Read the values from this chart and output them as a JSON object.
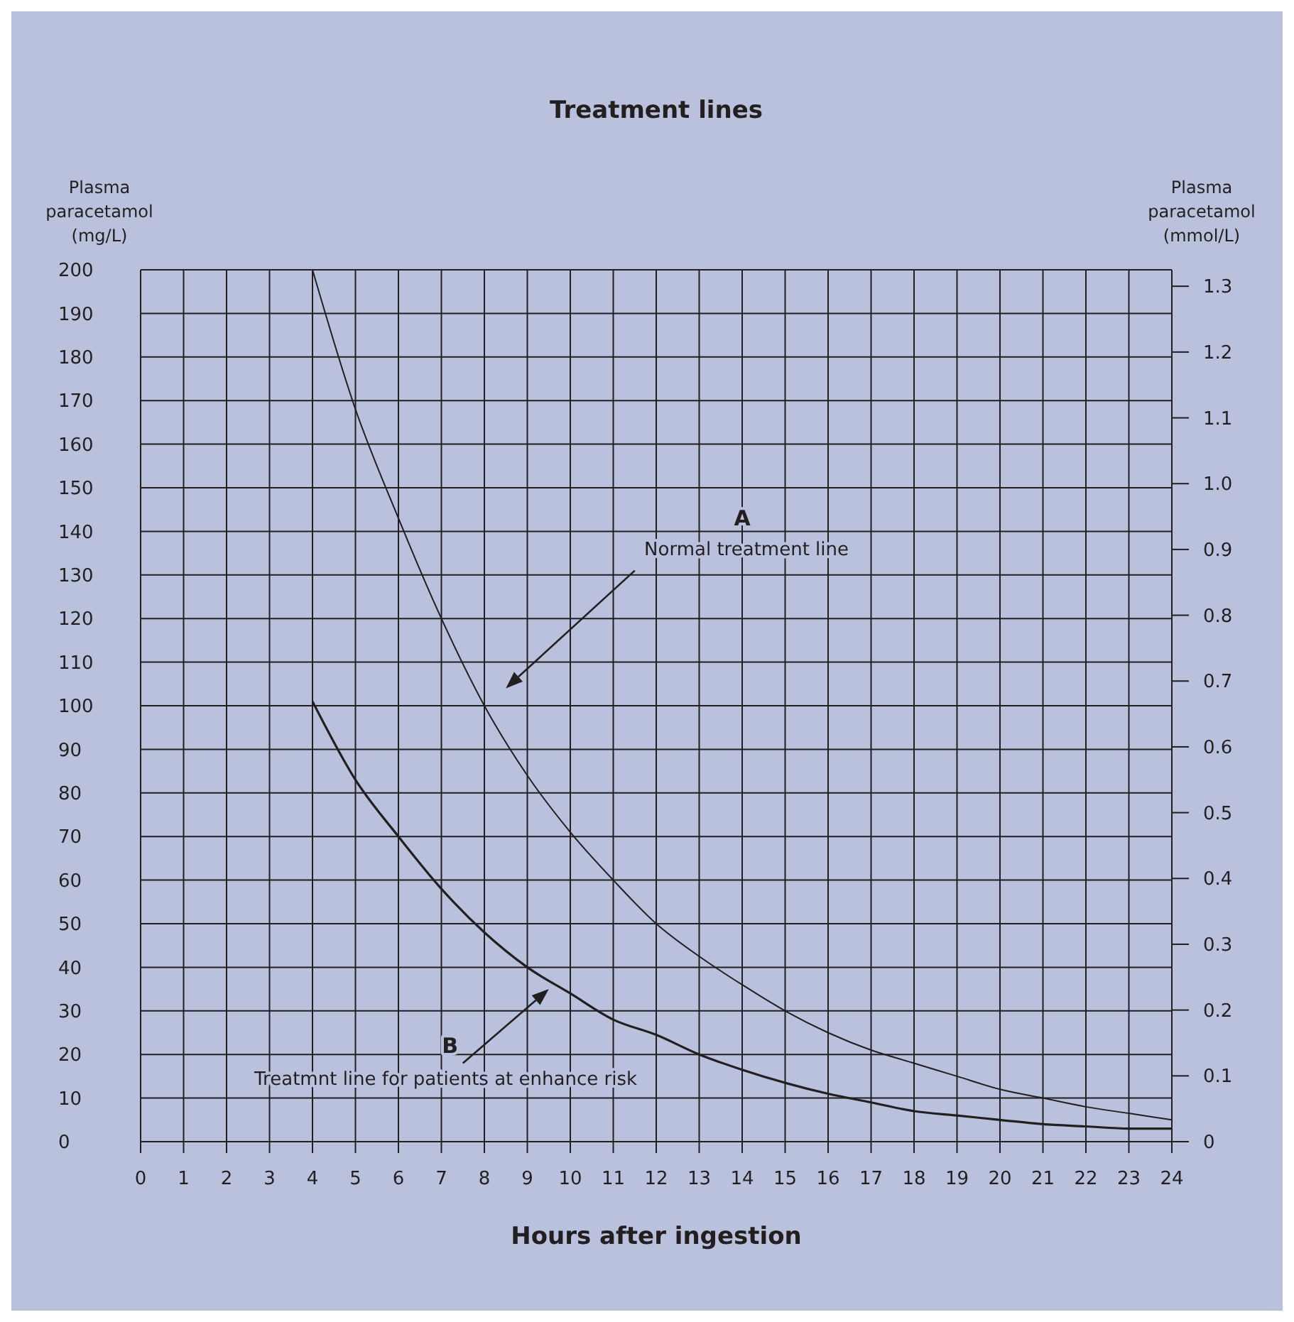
{
  "chart_data": {
    "type": "line",
    "title": "Treatment lines",
    "xlabel": "Hours after ingestion",
    "ylabel": "Plasma\nparacetamol\n(mg/L)",
    "y2label": "Plasma\nparacetamol\n(mmol/L)",
    "xlim": [
      0,
      24
    ],
    "xticks": [
      0,
      1,
      2,
      3,
      4,
      5,
      6,
      7,
      8,
      9,
      10,
      11,
      12,
      13,
      14,
      15,
      16,
      17,
      18,
      19,
      20,
      21,
      22,
      23,
      24
    ],
    "ylim": [
      0,
      200
    ],
    "yticks": [
      0,
      10,
      20,
      30,
      40,
      50,
      60,
      70,
      80,
      90,
      100,
      110,
      120,
      130,
      140,
      150,
      160,
      170,
      180,
      190,
      200
    ],
    "y2lim": [
      0,
      1.325
    ],
    "y2ticks": [
      0,
      0.1,
      0.2,
      0.3,
      0.4,
      0.5,
      0.6,
      0.7,
      0.8,
      0.9,
      {
        "value": 1,
        "label": "1.0"
      },
      1.1,
      1.2,
      1.3
    ],
    "grid": true,
    "marker": "none",
    "line_style": "solid",
    "series": [
      {
        "color": "#231f20",
        "x": [
          4,
          5,
          6,
          7,
          8,
          9,
          10,
          11,
          12,
          13,
          14,
          15,
          16,
          17,
          18,
          19,
          20,
          21,
          22,
          23,
          24
        ],
        "values": [
          200,
          168,
          143,
          120,
          100,
          84,
          71,
          60,
          50,
          42.5,
          36,
          30,
          25,
          21,
          18,
          15,
          12,
          10,
          8,
          6.5,
          5
        ]
      },
      {
        "color": "#231f20",
        "x": [
          4,
          5,
          6,
          7,
          8,
          9,
          10,
          11,
          12,
          13,
          14,
          15,
          16,
          17,
          18,
          19,
          20,
          21,
          22,
          23,
          24
        ],
        "values": [
          101,
          83,
          70,
          58,
          48,
          40,
          34,
          28,
          24.5,
          20,
          16.5,
          13.5,
          11,
          9,
          7,
          6,
          5,
          4,
          3.5,
          3,
          3
        ]
      }
    ],
    "annotations": [
      "A",
      "Normal treatment line",
      "B",
      "Treatmnt line for patients at enhance risk"
    ]
  }
}
